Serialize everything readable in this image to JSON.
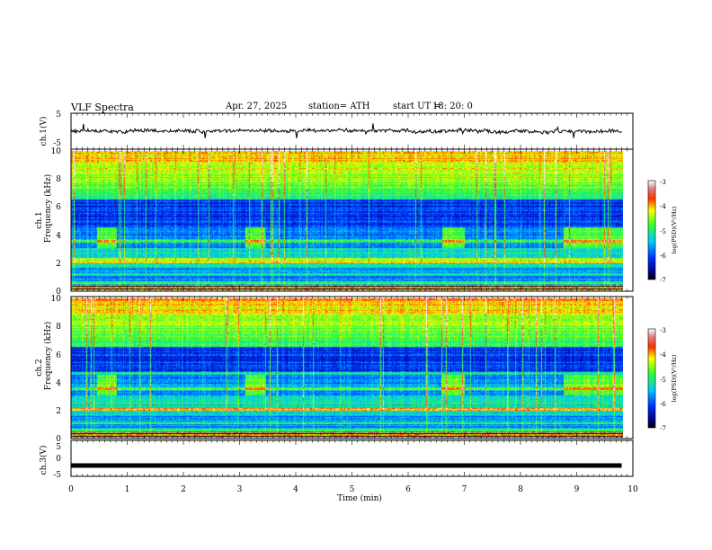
{
  "header": {
    "title": "VLF  Spectra",
    "date": "Apr. 27, 2025",
    "station": "station= ATH",
    "start_label": "start  UT  =",
    "start_time": "18: 20: 0"
  },
  "chart_data": [
    {
      "type": "line",
      "panel": "ch1-waveform",
      "ylabel": "ch.1(V)",
      "xlim": [
        0,
        10
      ],
      "ylim": [
        -5,
        5
      ],
      "yticks": [
        "5",
        "-5"
      ],
      "baseline_value": 0,
      "line_color": "#000000"
    },
    {
      "type": "heatmap",
      "panel": "ch1-spectrogram",
      "ylabel": "ch.1\nFrequency (kHz)",
      "xlim": [
        0,
        10
      ],
      "ylim": [
        0,
        10
      ],
      "yticks": [
        "0",
        "2",
        "4",
        "6",
        "8",
        "10"
      ],
      "quiet_intervals_min": [
        [
          0.45,
          0.8
        ],
        [
          3.1,
          3.45
        ],
        [
          6.6,
          7.0
        ],
        [
          8.75,
          9.8
        ]
      ],
      "colorbar": {
        "label": "log(PSD)(V²/Hz)",
        "range": [
          -7,
          -3
        ],
        "ticks": [
          "-3",
          "-4",
          "-5",
          "-6",
          "-7"
        ]
      }
    },
    {
      "type": "heatmap",
      "panel": "ch2-spectrogram",
      "ylabel": "ch.2\nFrequency (kHz)",
      "xlim": [
        0,
        10
      ],
      "ylim": [
        0,
        10
      ],
      "yticks": [
        "0",
        "2",
        "4",
        "6",
        "8",
        "10"
      ],
      "quiet_intervals_min": [
        [
          0.45,
          0.8
        ],
        [
          3.1,
          3.45
        ],
        [
          6.6,
          7.0
        ],
        [
          8.75,
          9.8
        ]
      ],
      "colorbar": {
        "label": "log(PSD)(V²/Hz)",
        "range": [
          -7,
          -3
        ],
        "ticks": [
          "-3",
          "-4",
          "-5",
          "-6",
          "-7"
        ]
      }
    },
    {
      "type": "line",
      "panel": "ch3-waveform",
      "ylabel": "ch.3(V)",
      "xlabel": "Time  (min)",
      "xlim": [
        0,
        10
      ],
      "ylim": [
        -5,
        5
      ],
      "yticks": [
        "5",
        "0",
        "-5"
      ],
      "xticks": [
        "0",
        "1",
        "2",
        "3",
        "4",
        "5",
        "6",
        "7",
        "8",
        "9",
        "10"
      ],
      "constant_value": -2,
      "data_end_min": 9.8,
      "line_color": "#000000"
    }
  ]
}
